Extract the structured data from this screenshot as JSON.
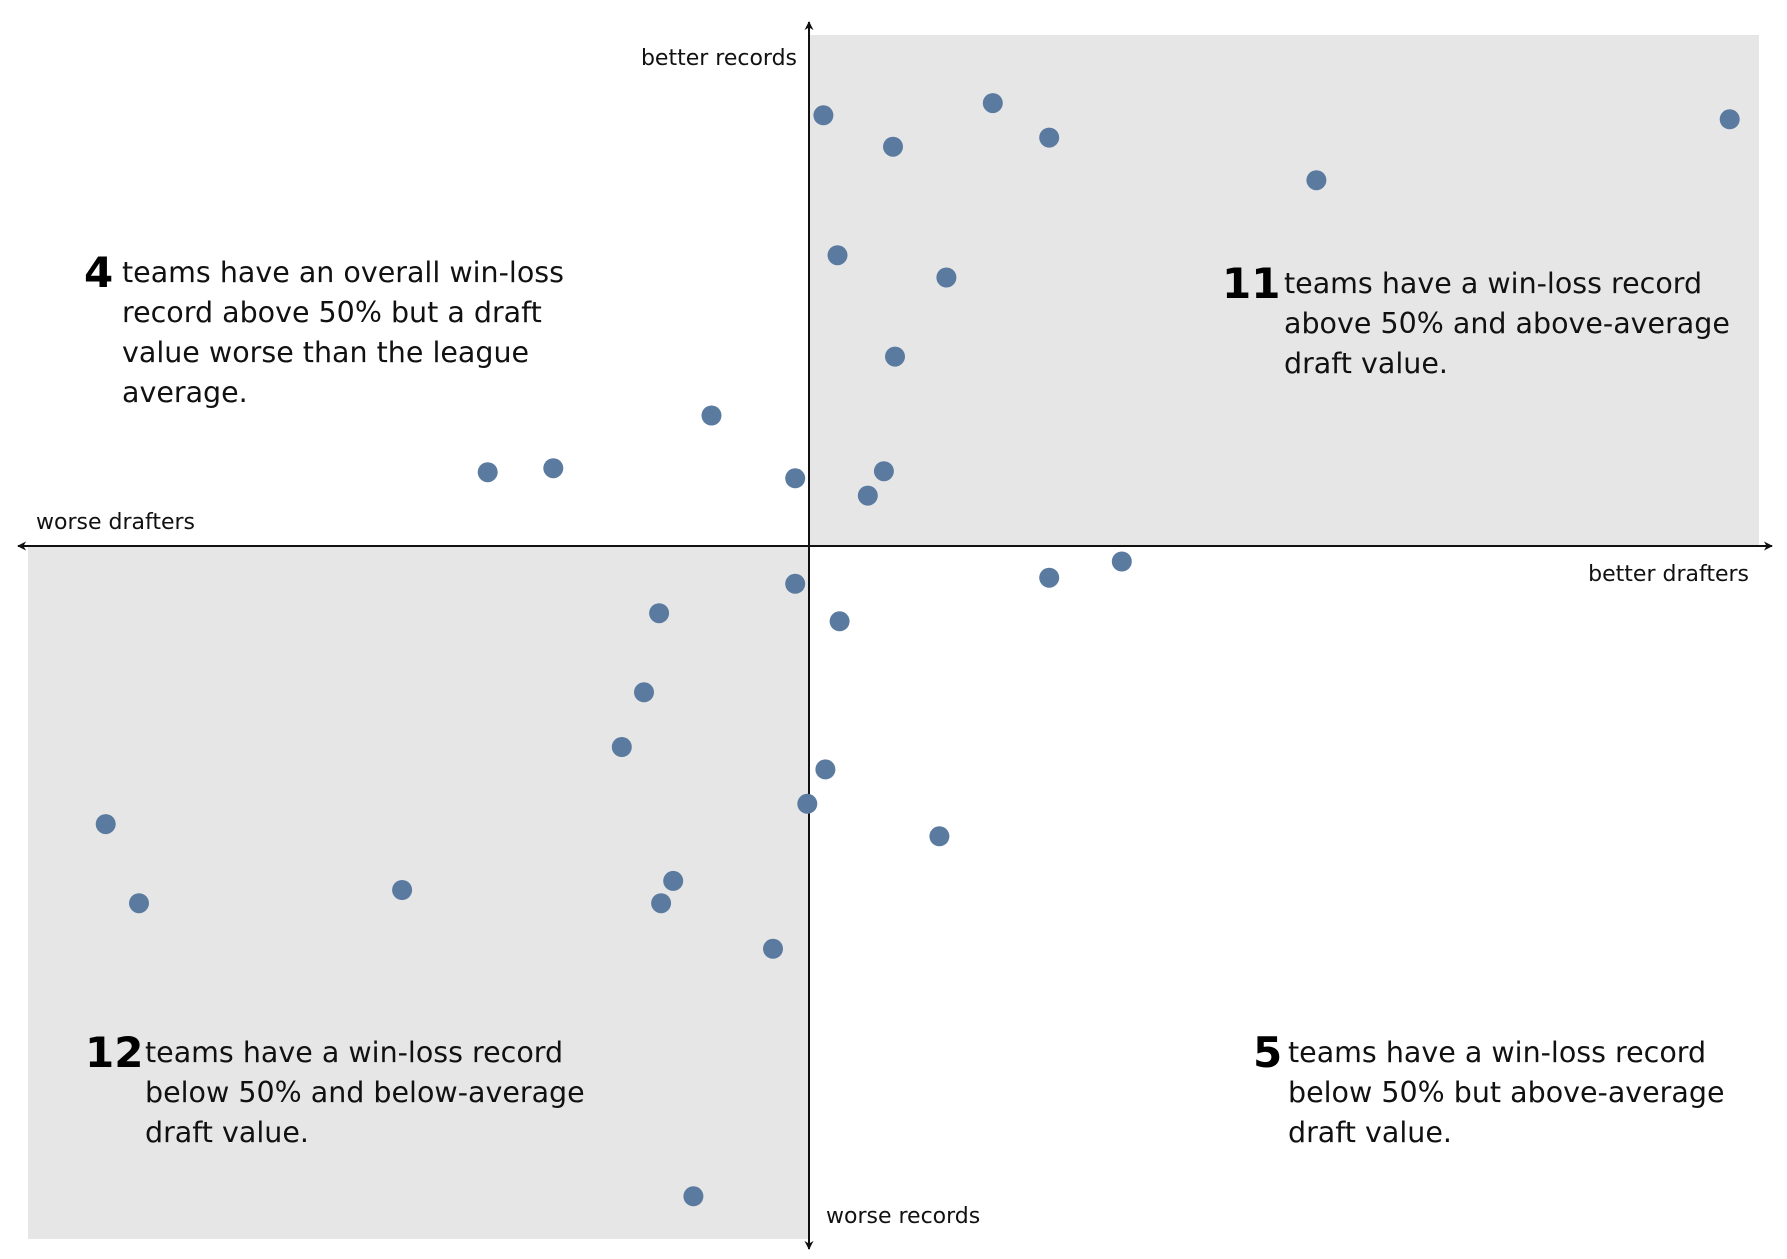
{
  "chart_data": {
    "type": "scatter",
    "title": "",
    "xlabel": "",
    "ylabel": "",
    "xlim": [
      -790,
      950
    ],
    "ylim": [
      -690,
      520
    ],
    "grid": false,
    "axis_labels": {
      "left": "worse drafters",
      "right": "better drafters",
      "top": "better records",
      "bottom": "worse records"
    },
    "quadrant_shading": [
      "top-right",
      "bottom-left"
    ],
    "colors": {
      "point": "#5b7aa0",
      "shade": "#e6e6e6",
      "axis": "#111111"
    },
    "points": [
      {
        "x": 9,
        "y": 428
      },
      {
        "x": 177,
        "y": 440
      },
      {
        "x": 78,
        "y": 397
      },
      {
        "x": 233,
        "y": 406
      },
      {
        "x": 498,
        "y": 364
      },
      {
        "x": 908,
        "y": 424
      },
      {
        "x": 23,
        "y": 290
      },
      {
        "x": 131,
        "y": 268
      },
      {
        "x": 80,
        "y": 190
      },
      {
        "x": -102,
        "y": 132
      },
      {
        "x": -324,
        "y": 76
      },
      {
        "x": -259,
        "y": 80
      },
      {
        "x": -19,
        "y": 70
      },
      {
        "x": 69,
        "y": 77
      },
      {
        "x": 53,
        "y": 53
      },
      {
        "x": 305,
        "y": -12
      },
      {
        "x": 233,
        "y": -28
      },
      {
        "x": -19,
        "y": -34
      },
      {
        "x": 25,
        "y": -71
      },
      {
        "x": -154,
        "y": -63
      },
      {
        "x": -169,
        "y": -141
      },
      {
        "x": -191,
        "y": -195
      },
      {
        "x": 11,
        "y": -217
      },
      {
        "x": -7,
        "y": -251
      },
      {
        "x": 124,
        "y": -283
      },
      {
        "x": -703,
        "y": -271
      },
      {
        "x": -670,
        "y": -349
      },
      {
        "x": -409,
        "y": -336
      },
      {
        "x": -140,
        "y": -327
      },
      {
        "x": -152,
        "y": -349
      },
      {
        "x": -41,
        "y": -394
      },
      {
        "x": -120,
        "y": -638
      }
    ],
    "annotations": [
      {
        "quadrant": "top-left",
        "count": "4",
        "lines": [
          "teams have an overall win-loss",
          "record above 50% but a draft",
          "value worse than the league",
          "average."
        ]
      },
      {
        "quadrant": "top-right",
        "count": "11",
        "lines": [
          "teams have a win-loss record",
          "above 50% and above-average",
          "draft value."
        ]
      },
      {
        "quadrant": "bottom-left",
        "count": "12",
        "lines": [
          "teams have a win-loss record",
          "below 50% and below-average",
          "draft value."
        ]
      },
      {
        "quadrant": "bottom-right",
        "count": "5",
        "lines": [
          "teams have a win-loss record",
          "below 50% but above-average",
          "draft value."
        ]
      }
    ]
  }
}
